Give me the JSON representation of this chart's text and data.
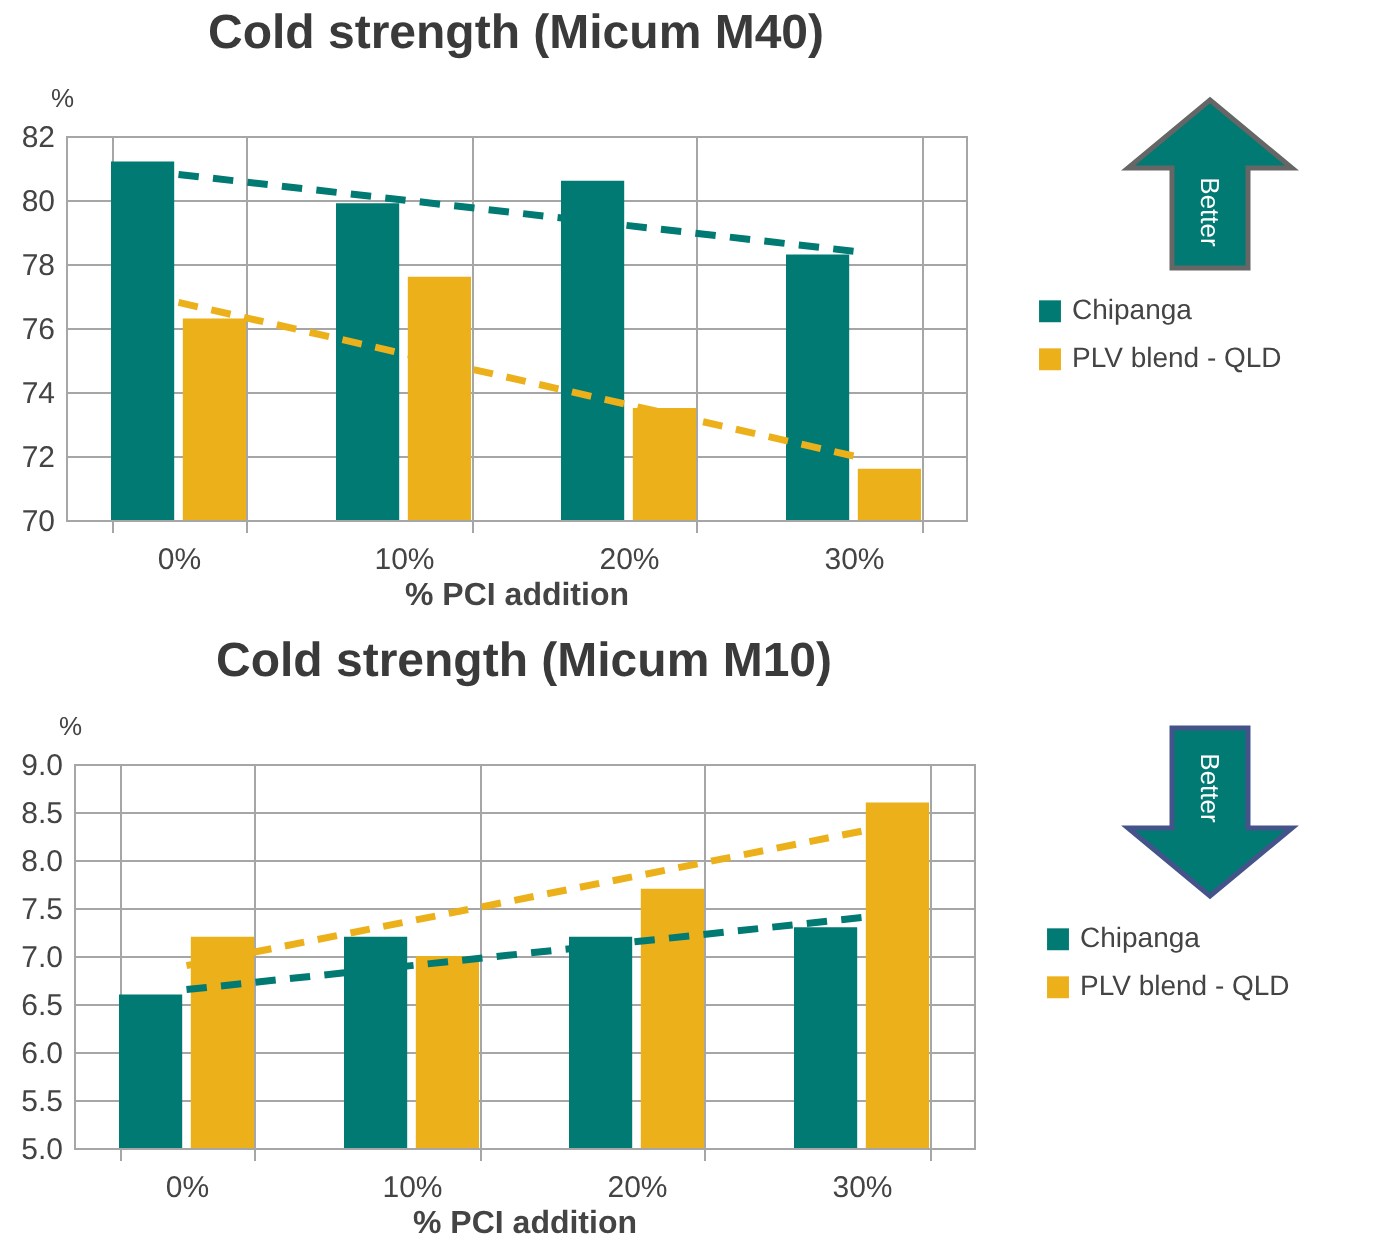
{
  "chart_data": [
    {
      "type": "bar",
      "title": "Cold strength (Micum M40)",
      "xlabel": "% PCI addition",
      "ylabel": "%",
      "categories": [
        "0%",
        "10%",
        "20%",
        "30%"
      ],
      "series": [
        {
          "name": "Chipanga",
          "color": "#007a73",
          "values": [
            81.2,
            79.9,
            80.6,
            78.3
          ]
        },
        {
          "name": "PLV blend - QLD",
          "color": "#ecb01b",
          "values": [
            76.3,
            77.6,
            73.5,
            71.6
          ]
        },
        {
          "type": "line",
          "color": "#007a73",
          "line_style": "dashed",
          "x": [
            "0%",
            "30%"
          ],
          "values": [
            80.8,
            78.4
          ]
        },
        {
          "type": "line",
          "color": "#ecb01b",
          "line_style": "dashed",
          "x": [
            "0%",
            "30%"
          ],
          "values": [
            76.8,
            72.0
          ]
        }
      ],
      "ylim": [
        70,
        82
      ],
      "yticks": [
        70,
        72,
        74,
        76,
        78,
        80,
        82
      ],
      "grid": true,
      "legend": "right",
      "annotations": [
        "Better"
      ]
    },
    {
      "type": "bar",
      "title": "Cold strength (Micum M10)",
      "xlabel": "% PCI addition",
      "ylabel": "%",
      "categories": [
        "0%",
        "10%",
        "20%",
        "30%"
      ],
      "series": [
        {
          "name": "Chipanga",
          "color": "#007a73",
          "values": [
            6.6,
            7.2,
            7.2,
            7.3
          ]
        },
        {
          "name": "PLV blend - QLD",
          "color": "#ecb01b",
          "values": [
            7.2,
            7.0,
            7.7,
            8.6
          ]
        },
        {
          "type": "line",
          "color": "#007a73",
          "line_style": "dashed",
          "x": [
            "0%",
            "30%"
          ],
          "values": [
            6.65,
            7.4
          ]
        },
        {
          "type": "line",
          "color": "#ecb01b",
          "line_style": "dashed",
          "x": [
            "0%",
            "30%"
          ],
          "values": [
            6.9,
            8.3
          ]
        }
      ],
      "ylim": [
        5,
        9
      ],
      "yticks": [
        {
          "value": 5,
          "label": "5.0"
        },
        {
          "value": 5.5,
          "label": "5.5"
        },
        {
          "value": 6,
          "label": "6.0"
        },
        {
          "value": 6.5,
          "label": "6.5"
        },
        {
          "value": 7,
          "label": "7.0"
        },
        {
          "value": 7.5,
          "label": "7.5"
        },
        {
          "value": 8,
          "label": "8.0"
        },
        {
          "value": 8.5,
          "label": "8.5"
        },
        {
          "value": 9,
          "label": "9.0"
        }
      ],
      "grid": true,
      "legend": "right",
      "annotations": [
        "Better"
      ]
    }
  ]
}
